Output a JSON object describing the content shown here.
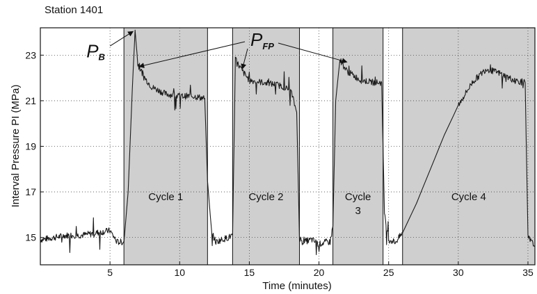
{
  "chart_data": {
    "type": "line",
    "title": "Station 1401",
    "xlabel": "Time (minutes)",
    "ylabel": "Interval Pressure PI (MPa)",
    "xlim": [
      0,
      35.5
    ],
    "ylim": [
      13.8,
      24.2
    ],
    "xticks": [
      5,
      10,
      15,
      20,
      25,
      30,
      35
    ],
    "yticks": [
      15,
      17,
      19,
      21,
      23
    ],
    "grid": true,
    "shaded_regions": [
      {
        "label": "Cycle 1",
        "x_start": 6.0,
        "x_end": 12.0
      },
      {
        "label": "Cycle 2",
        "x_start": 13.8,
        "x_end": 18.6
      },
      {
        "label": "Cycle 3",
        "x_start": 21.0,
        "x_end": 24.6
      },
      {
        "label": "Cycle 4",
        "x_start": 26.0,
        "x_end": 35.5
      }
    ],
    "annotations": [
      {
        "text": "P",
        "subscript": "B",
        "x": 6.8,
        "y": 24.1
      },
      {
        "text": "P",
        "subscript": "FP",
        "points": [
          [
            7.1,
            22.5
          ],
          [
            14.5,
            22.4
          ],
          [
            22.0,
            22.7
          ]
        ]
      }
    ],
    "series": [
      {
        "x": [
          0,
          1,
          2,
          3,
          4,
          5,
          5.5,
          6.0,
          6.3,
          6.6,
          6.8,
          7.0,
          7.5,
          8,
          9,
          10,
          11,
          11.8,
          12.0,
          12.3,
          12.6,
          13,
          13.5,
          13.8,
          14.0,
          14.5,
          15,
          16,
          17,
          17.5,
          18.0,
          18.4,
          18.6,
          18.8,
          19.5,
          20,
          20.5,
          20.8,
          21.0,
          21.2,
          21.5,
          22,
          23,
          24,
          24.5,
          24.7,
          25,
          25.5,
          26.0,
          27,
          28,
          29,
          30,
          31,
          32,
          33,
          34,
          34.8,
          35.0,
          35.5
        ],
        "y": [
          14.9,
          15.0,
          15.1,
          15.1,
          15.2,
          15.3,
          14.8,
          14.8,
          17.0,
          21.5,
          24.1,
          22.6,
          22.0,
          21.6,
          21.3,
          21.2,
          21.2,
          21.1,
          17.5,
          15.2,
          14.8,
          14.9,
          15.0,
          15.1,
          22.8,
          22.3,
          21.9,
          21.8,
          21.7,
          21.6,
          21.4,
          20.5,
          15.0,
          14.8,
          14.9,
          14.7,
          14.8,
          14.8,
          15.5,
          21.0,
          22.8,
          22.3,
          21.9,
          21.8,
          21.8,
          16.0,
          14.9,
          14.8,
          15.2,
          16.5,
          18.0,
          19.5,
          20.8,
          21.8,
          22.4,
          22.2,
          21.9,
          21.8,
          15.0,
          14.6
        ]
      }
    ]
  }
}
